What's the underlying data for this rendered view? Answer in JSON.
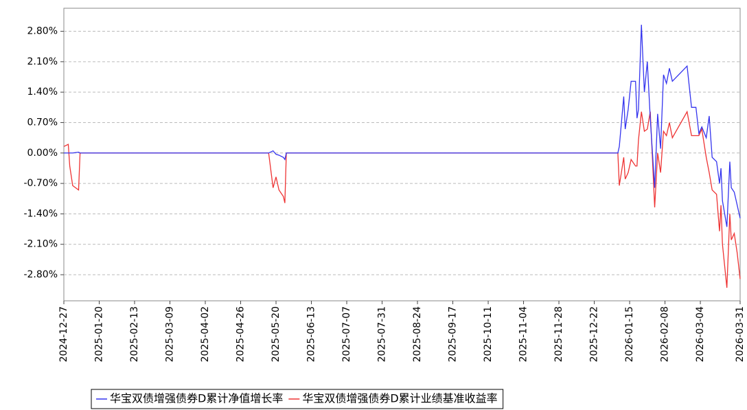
{
  "chart_data": {
    "type": "line",
    "x": [
      "2024-12-27",
      "2024-12-30",
      "2024-12-31",
      "2025-01-02",
      "2025-01-06",
      "2025-01-07",
      "2025-05-15",
      "2025-05-18",
      "2025-05-20",
      "2025-05-22",
      "2025-05-25",
      "2025-05-26",
      "2025-05-27",
      "2026-01-07",
      "2026-01-08",
      "2026-01-11",
      "2026-01-12",
      "2026-01-14",
      "2026-01-16",
      "2026-01-19",
      "2026-01-20",
      "2026-01-21",
      "2026-01-23",
      "2026-01-25",
      "2026-01-27",
      "2026-01-29",
      "2026-02-01",
      "2026-02-03",
      "2026-02-05",
      "2026-02-07",
      "2026-02-09",
      "2026-02-11",
      "2026-02-13",
      "2026-02-23",
      "2026-02-26",
      "2026-03-01",
      "2026-03-03",
      "2026-03-05",
      "2026-03-08",
      "2026-03-10",
      "2026-03-12",
      "2026-03-15",
      "2026-03-17",
      "2026-03-18",
      "2026-03-19",
      "2026-03-22",
      "2026-03-24",
      "2026-03-25",
      "2026-03-27",
      "2026-03-29",
      "2026-03-31"
    ],
    "series": [
      {
        "name": "华宝双债增强债券D累计净值增长率",
        "color": "#3333ee",
        "values": [
          0,
          0,
          0,
          0,
          0.02,
          0,
          0,
          0.05,
          -0.03,
          -0.05,
          -0.1,
          -0.15,
          0,
          0,
          0.15,
          1.3,
          0.55,
          1.0,
          1.65,
          1.65,
          0.8,
          1.0,
          2.95,
          1.4,
          2.1,
          0.8,
          -0.8,
          0.9,
          0.1,
          1.8,
          1.6,
          1.95,
          1.65,
          2.0,
          1.05,
          1.05,
          0.45,
          0.6,
          0.35,
          0.85,
          -0.1,
          -0.2,
          -0.7,
          -0.35,
          -1.1,
          -1.7,
          -0.2,
          -0.8,
          -0.9,
          -1.2,
          -1.5
        ]
      },
      {
        "name": "华宝双债增强债券D累计业绩基准收益率",
        "color": "#ee3333",
        "values": [
          0.15,
          0.2,
          -0.3,
          -0.75,
          -0.85,
          0,
          0,
          -0.8,
          -0.55,
          -0.85,
          -1.0,
          -1.15,
          0,
          0,
          -0.75,
          -0.1,
          -0.6,
          -0.45,
          -0.15,
          -0.3,
          -0.3,
          0.3,
          0.95,
          0.5,
          0.55,
          0.95,
          -1.25,
          0,
          -0.45,
          0.5,
          0.4,
          0.7,
          0.35,
          0.95,
          0.4,
          0.4,
          0.4,
          0.55,
          -0.1,
          -0.45,
          -0.85,
          -0.95,
          -1.8,
          -1.2,
          -2.1,
          -3.1,
          -1.4,
          -2.0,
          -1.85,
          -2.3,
          -2.9
        ]
      }
    ],
    "xlim": [
      "2024-12-27",
      "2026-03-31"
    ],
    "xticks": [
      "2024-12-27",
      "2025-01-20",
      "2025-02-13",
      "2025-03-09",
      "2025-04-02",
      "2025-04-26",
      "2025-05-20",
      "2025-06-13",
      "2025-07-07",
      "2025-07-31",
      "2025-08-24",
      "2025-09-17",
      "2025-10-11",
      "2025-11-04",
      "2025-11-28",
      "2025-12-22",
      "2026-01-15",
      "2026-02-08",
      "2026-03-04",
      "2026-03-31"
    ],
    "ylim": [
      -3.4,
      3.33
    ],
    "yticks": [
      {
        "value": 2.8,
        "label": "2.80%"
      },
      {
        "value": 2.1,
        "label": "2.10%"
      },
      {
        "value": 1.4,
        "label": "1.40%"
      },
      {
        "value": 0.7,
        "label": "0.70%"
      },
      {
        "value": 0,
        "label": "0.00%"
      },
      {
        "value": -0.7,
        "label": "-0.70%"
      },
      {
        "value": -1.4,
        "label": "-1.40%"
      },
      {
        "value": -2.1,
        "label": "-2.10%"
      },
      {
        "value": -2.8,
        "label": "-2.80%"
      }
    ],
    "grid": true,
    "legend": "bottom"
  }
}
